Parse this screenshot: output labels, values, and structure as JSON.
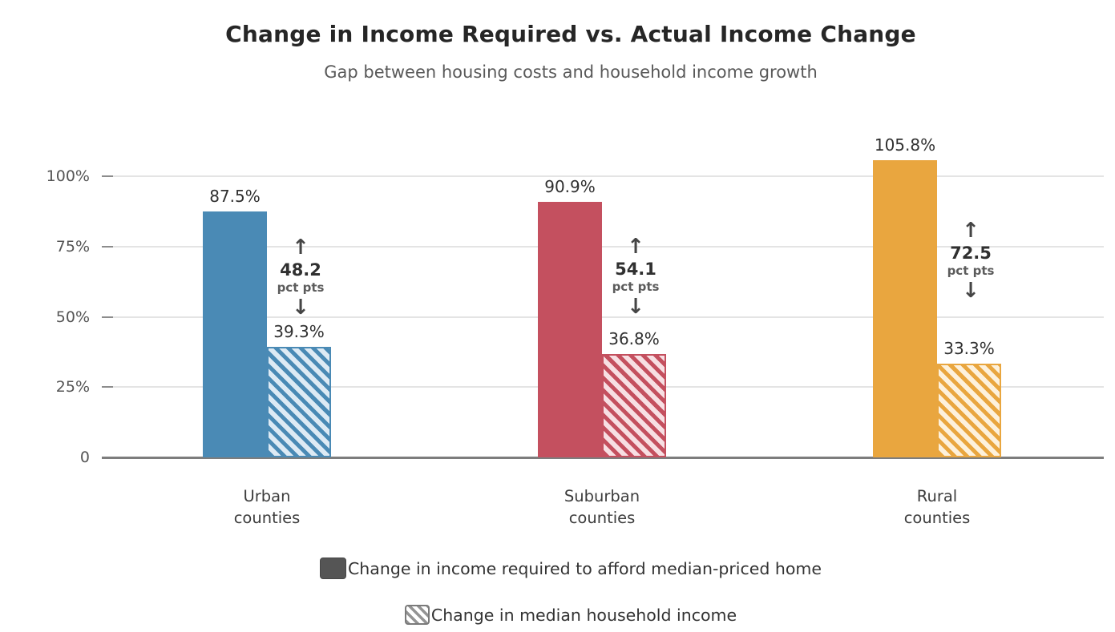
{
  "title": "Change in Income Required vs. Actual Income Change",
  "subtitle": "Gap between housing costs and household income growth",
  "chart_data": {
    "type": "bar",
    "categories": [
      "Urban counties",
      "Suburban counties",
      "Rural counties"
    ],
    "series": [
      {
        "name": "Change in income required to afford median-priced home",
        "pattern": "solid",
        "values": [
          87.5,
          90.9,
          105.8
        ]
      },
      {
        "name": "Change in median household income",
        "pattern": "hatched",
        "values": [
          39.3,
          36.8,
          33.3
        ]
      }
    ],
    "gap_annotations": {
      "values": [
        "48.2",
        "54.1",
        "72.5"
      ],
      "unit": "pct pts",
      "arrow_up": "↑",
      "arrow_down": "↓"
    },
    "group_colors": [
      {
        "name": "urban",
        "solid": "#4a8ab5",
        "light": "#ddeaf4"
      },
      {
        "name": "suburban",
        "solid": "#c4505f",
        "light": "#f7dfe3"
      },
      {
        "name": "rural",
        "solid": "#e9a63f",
        "light": "#fdf1dc"
      }
    ],
    "yticks": [
      {
        "value": 0,
        "label": "0"
      },
      {
        "value": 25,
        "label": "25%"
      },
      {
        "value": 50,
        "label": "50%"
      },
      {
        "value": 75,
        "label": "75%"
      },
      {
        "value": 100,
        "label": "100%"
      }
    ],
    "ylim": [
      0,
      120
    ],
    "grid": "horizontal",
    "legend_position": "bottom"
  },
  "legend": {
    "items": [
      {
        "label": "Change in income required to afford median-priced home",
        "swatch": "solid-gray"
      },
      {
        "label": "Change in median household income",
        "swatch": "hatched-gray"
      }
    ]
  },
  "colors": {
    "background": "#ffffff",
    "gridline": "#e4e4e4",
    "axis_line": "#7d7d7d",
    "title_text": "#262626",
    "subtitle_text": "#595959",
    "tick_text": "#555555",
    "value_text": "#303030"
  }
}
